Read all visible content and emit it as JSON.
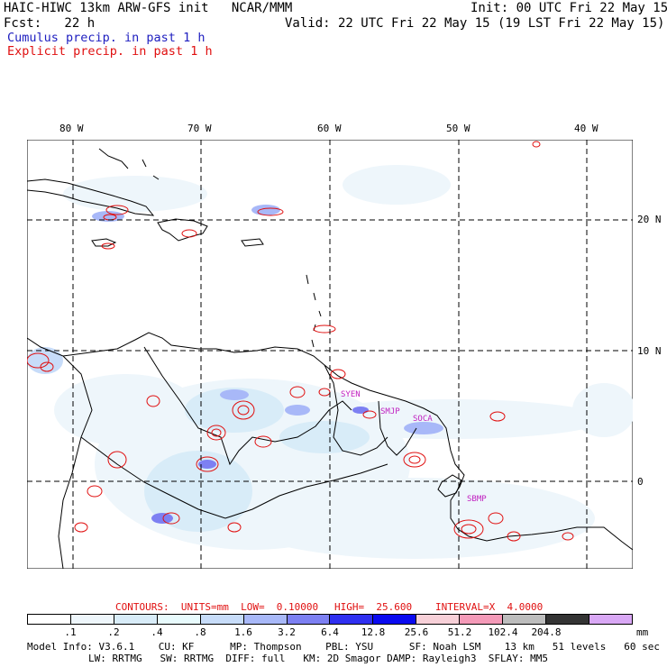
{
  "header": {
    "title": "HAIC-HIWC 13km ARW-GFS init   NCAR/MMM",
    "init": "Init: 00 UTC Fri 22 May 15",
    "fcst": "Fcst:   22 h",
    "valid": "Valid: 22 UTC Fri 22 May 15 (19 LST Fri 22 May 15)",
    "legend_cumulus": "Cumulus precip. in past 1 h",
    "legend_explicit": "Explicit precip. in past 1 h"
  },
  "colors": {
    "cumulus": "#2b2bd0",
    "explicit": "#e01010",
    "station": "#c020c0"
  },
  "map": {
    "lon_labels": [
      "80 W",
      "70 W",
      "60 W",
      "50 W",
      "40 W"
    ],
    "lat_labels": [
      "20 N",
      "10 N",
      "0"
    ],
    "stations": [
      "SYEN",
      "SMJP",
      "SOCA",
      "SBMP"
    ]
  },
  "contour_line": {
    "contours": "CONTOURS:  UNITS=mm  LOW=  0.10000",
    "high": "HIGH=  25.600",
    "interval": "INTERVAL=X  4.0000"
  },
  "colorbar": {
    "labels": [
      ".1",
      ".2",
      ".4",
      ".8",
      "1.6",
      "3.2",
      "6.4",
      "12.8",
      "25.6",
      "51.2",
      "102.4",
      "204.8"
    ],
    "unit": "mm",
    "colors": [
      "#ffffff",
      "#eef6fb",
      "#d8ecf8",
      "#e8fbfd",
      "#c7dcf9",
      "#a8b8f8",
      "#7d80f2",
      "#2f2ff0",
      "#0a0af0",
      "#f7d0d8",
      "#f49ab8",
      "#bdbdbd",
      "#343434",
      "#d9a8f5"
    ]
  },
  "footer": {
    "line1": "Model Info: V3.6.1    CU: KF      MP: Thompson    PBL: YSU      SF: Noah LSM    13 km   51 levels   60 sec",
    "line2": "LW: RRTMG   SW: RRTMG  DIFF: full   KM: 2D Smagor DAMP: Rayleigh3  SFLAY: MM5"
  }
}
